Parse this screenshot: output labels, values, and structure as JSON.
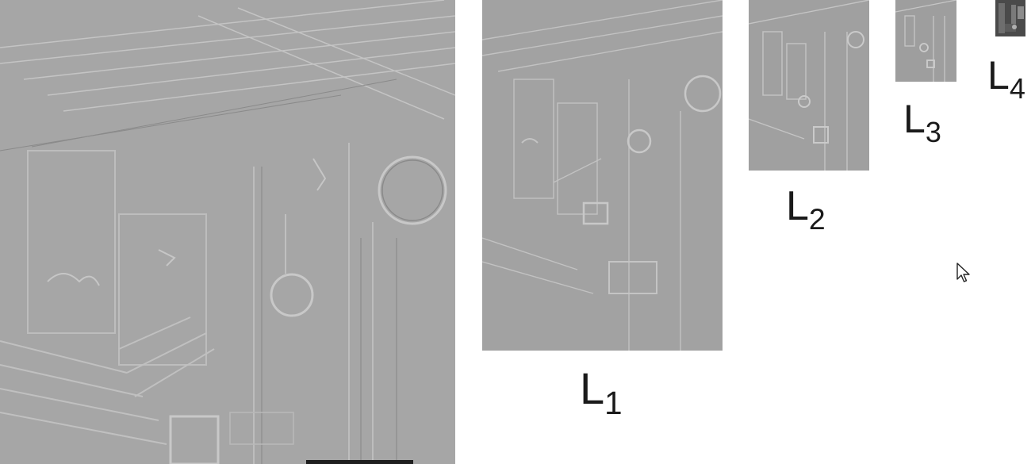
{
  "levels": [
    {
      "letter": "L",
      "sub": "1"
    },
    {
      "letter": "L",
      "sub": "2"
    },
    {
      "letter": "L",
      "sub": "3"
    },
    {
      "letter": "L",
      "sub": "4"
    }
  ],
  "colors": {
    "band_gray": "#a5a5a5",
    "lowpass_dark": "#4a4a4a",
    "label": "#1a1a1a"
  },
  "icons": {
    "cursor": "mouse-pointer-icon"
  }
}
